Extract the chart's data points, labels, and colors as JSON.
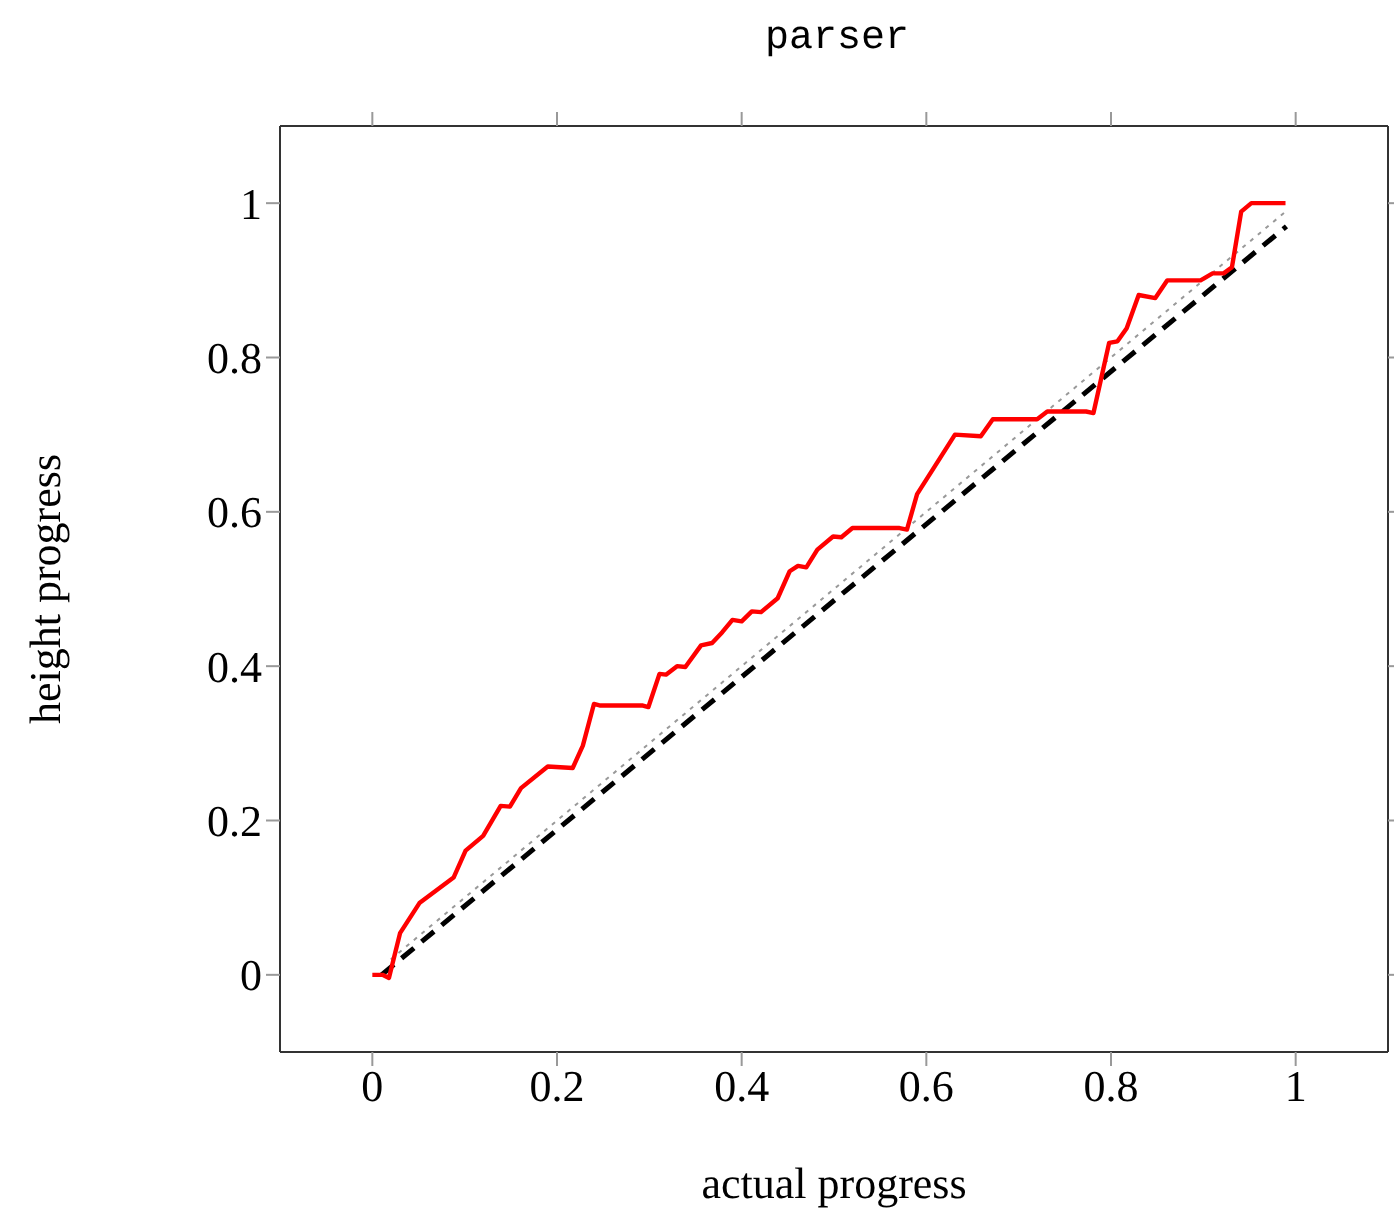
{
  "chart_data": {
    "type": "line",
    "title": "parser",
    "xlabel": "actual progress",
    "ylabel": "height progress",
    "xlim": [
      -0.1,
      1.1
    ],
    "ylim": [
      -0.1,
      1.1
    ],
    "xticks": [
      0,
      0.2,
      0.4,
      0.6,
      0.8,
      1
    ],
    "yticks": [
      0,
      0.2,
      0.4,
      0.6,
      0.8,
      1
    ],
    "grid": false,
    "series": [
      {
        "color": "#999999",
        "line_style": "dotted",
        "x": [
          0.02,
          0.99
        ],
        "values": [
          0.02,
          0.99
        ]
      },
      {
        "color": "#000000",
        "line_style": "dashed",
        "x": [
          0.01,
          0.99
        ],
        "values": [
          0,
          0.97
        ]
      },
      {
        "color": "#ff0000",
        "line_style": "solid",
        "x": [
          0,
          0.011,
          0.018,
          0.03,
          0.051,
          0.088,
          0.101,
          0.12,
          0.139,
          0.149,
          0.161,
          0.19,
          0.217,
          0.228,
          0.24,
          0.247,
          0.293,
          0.299,
          0.311,
          0.318,
          0.33,
          0.339,
          0.356,
          0.368,
          0.379,
          0.39,
          0.4,
          0.411,
          0.421,
          0.439,
          0.452,
          0.461,
          0.47,
          0.482,
          0.499,
          0.508,
          0.52,
          0.571,
          0.579,
          0.59,
          0.631,
          0.659,
          0.672,
          0.72,
          0.731,
          0.773,
          0.781,
          0.798,
          0.807,
          0.817,
          0.83,
          0.848,
          0.861,
          0.897,
          0.91,
          0.922,
          0.931,
          0.941,
          0.952,
          0.989
        ],
        "values": [
          0,
          0,
          -0.004,
          0.054,
          0.093,
          0.126,
          0.161,
          0.18,
          0.219,
          0.218,
          0.242,
          0.27,
          0.268,
          0.297,
          0.351,
          0.349,
          0.349,
          0.347,
          0.39,
          0.389,
          0.4,
          0.399,
          0.427,
          0.43,
          0.444,
          0.46,
          0.458,
          0.471,
          0.47,
          0.488,
          0.523,
          0.53,
          0.528,
          0.551,
          0.568,
          0.567,
          0.579,
          0.579,
          0.577,
          0.623,
          0.7,
          0.698,
          0.72,
          0.72,
          0.73,
          0.73,
          0.728,
          0.819,
          0.821,
          0.838,
          0.881,
          0.877,
          0.9,
          0.9,
          0.909,
          0.909,
          0.917,
          0.989,
          1,
          1
        ]
      }
    ]
  }
}
